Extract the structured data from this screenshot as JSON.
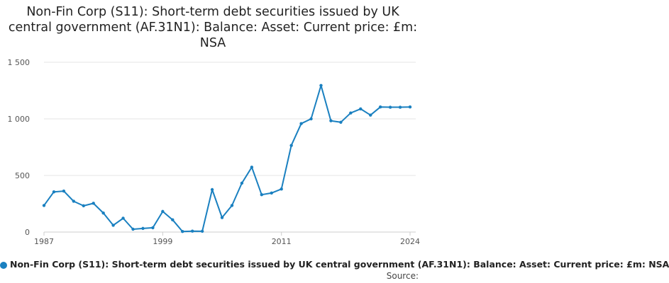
{
  "page": {
    "title": "Non-Fin Corp (S11): Short-term debt securities issued by UK central government (AF.31N1): Balance: Asset: Current price: £m: NSA",
    "source_label": "Source:"
  },
  "colors": {
    "series": "#1a80c0",
    "grid": "#e6e6e6",
    "axis": "#cccccc"
  },
  "chart_data": {
    "type": "line",
    "title": "Non-Fin Corp (S11): Short-term debt securities issued by UK central government (AF.31N1): Balance: Asset: Current price: £m: NSA",
    "xlabel": "",
    "ylabel": "",
    "x": [
      1987,
      1988,
      1989,
      1990,
      1991,
      1992,
      1993,
      1994,
      1995,
      1996,
      1997,
      1998,
      1999,
      2000,
      2001,
      2002,
      2003,
      2004,
      2005,
      2006,
      2007,
      2008,
      2009,
      2010,
      2011,
      2012,
      2013,
      2014,
      2015,
      2016,
      2017,
      2018,
      2019,
      2020,
      2021,
      2022,
      2023,
      2024
    ],
    "series": [
      {
        "name": "Non-Fin Corp (S11): Short-term debt securities issued by UK central government (AF.31N1): Balance: Asset: Current price: £m: NSA",
        "values": [
          235,
          355,
          362,
          272,
          232,
          254,
          168,
          60,
          122,
          25,
          32,
          38,
          182,
          108,
          5,
          8,
          7,
          375,
          128,
          235,
          432,
          573,
          330,
          345,
          380,
          765,
          958,
          1000,
          1295,
          983,
          970,
          1052,
          1088,
          1033,
          1105,
          1103,
          1103,
          1105
        ]
      }
    ],
    "xticks": [
      1987,
      1999,
      2011,
      2024
    ],
    "xtick_labels": [
      "1987",
      "1999",
      "2011",
      "2024"
    ],
    "yticks": [
      0,
      500,
      1000,
      1500
    ],
    "ytick_labels": [
      "0",
      "500",
      "1 000",
      "1 500"
    ],
    "xlim": [
      1987,
      2024
    ],
    "ylim": [
      0,
      1500
    ],
    "grid": true,
    "legend_position": "bottom"
  }
}
